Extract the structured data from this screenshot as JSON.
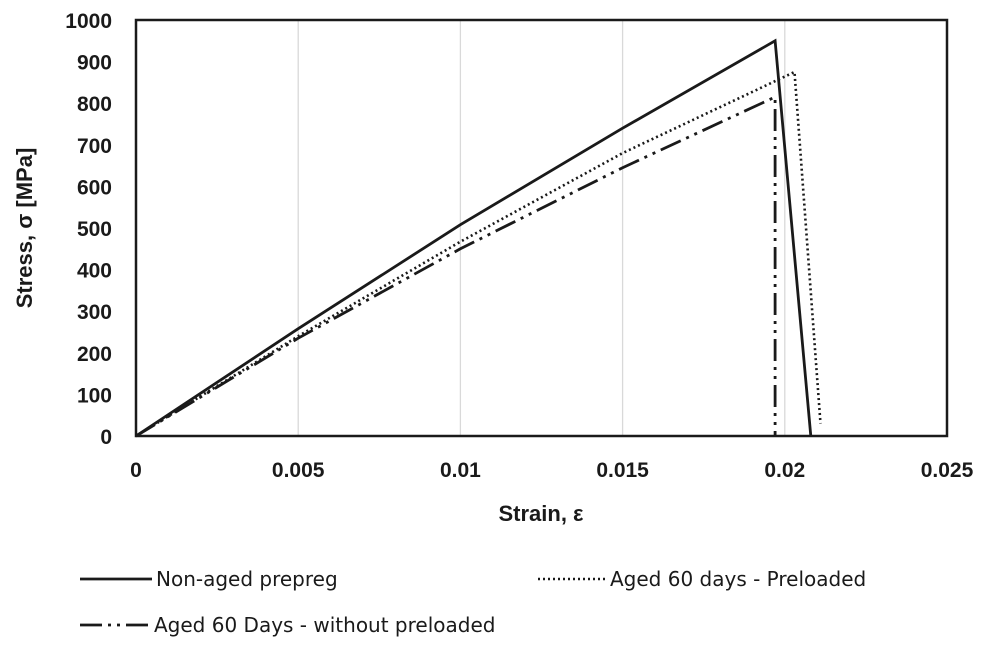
{
  "chart_data": {
    "type": "line",
    "title": "",
    "xlabel": "Strain, ε",
    "ylabel": "Stress, σ [MPa]",
    "xlim": [
      0,
      0.025
    ],
    "ylim": [
      0,
      1000
    ],
    "x_ticks": [
      0,
      0.005,
      0.01,
      0.015,
      0.02,
      0.025
    ],
    "x_tick_labels": [
      "0",
      "0.005",
      "0.01",
      "0.015",
      "0.02",
      "0.025"
    ],
    "y_ticks": [
      0,
      100,
      200,
      300,
      400,
      500,
      600,
      700,
      800,
      900,
      1000
    ],
    "y_tick_labels": [
      "0",
      "100",
      "200",
      "300",
      "400",
      "500",
      "600",
      "700",
      "800",
      "900",
      "1000"
    ],
    "grid": "vertical",
    "legend_position": "bottom",
    "series": [
      {
        "name": "Non-aged prepreg",
        "style": "solid",
        "color": "#1a1a1a",
        "x": [
          0,
          0.005,
          0.01,
          0.015,
          0.0197,
          0.0208
        ],
        "y": [
          0,
          258,
          508,
          740,
          950,
          0
        ]
      },
      {
        "name": "Aged 60 days - Preloaded",
        "style": "dotted",
        "color": "#1a1a1a",
        "x": [
          0,
          0.005,
          0.01,
          0.015,
          0.0203,
          0.0211
        ],
        "y": [
          0,
          240,
          467,
          680,
          875,
          30
        ]
      },
      {
        "name": "Aged 60 Days - without preloaded",
        "style": "dash-dot-dot",
        "color": "#1a1a1a",
        "x": [
          0,
          0.005,
          0.01,
          0.015,
          0.0197,
          0.0197
        ],
        "y": [
          0,
          235,
          450,
          645,
          815,
          0
        ]
      }
    ]
  }
}
